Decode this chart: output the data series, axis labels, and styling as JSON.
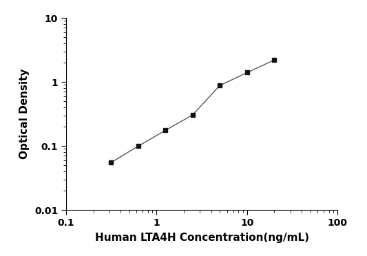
{
  "x": [
    0.313,
    0.625,
    1.25,
    2.5,
    5,
    10,
    20
  ],
  "y": [
    0.055,
    0.099,
    0.175,
    0.305,
    0.88,
    1.4,
    2.2
  ],
  "xlim": [
    0.1,
    100
  ],
  "ylim": [
    0.01,
    10
  ],
  "xlabel": "Human LTA4H Concentration(ng/mL)",
  "ylabel": "Optical Density",
  "line_color": "#555555",
  "marker": "s",
  "marker_color": "#111111",
  "marker_size": 5,
  "linewidth": 1.0,
  "xlabel_fontsize": 11,
  "ylabel_fontsize": 11,
  "tick_fontsize": 10,
  "background_color": "#ffffff"
}
